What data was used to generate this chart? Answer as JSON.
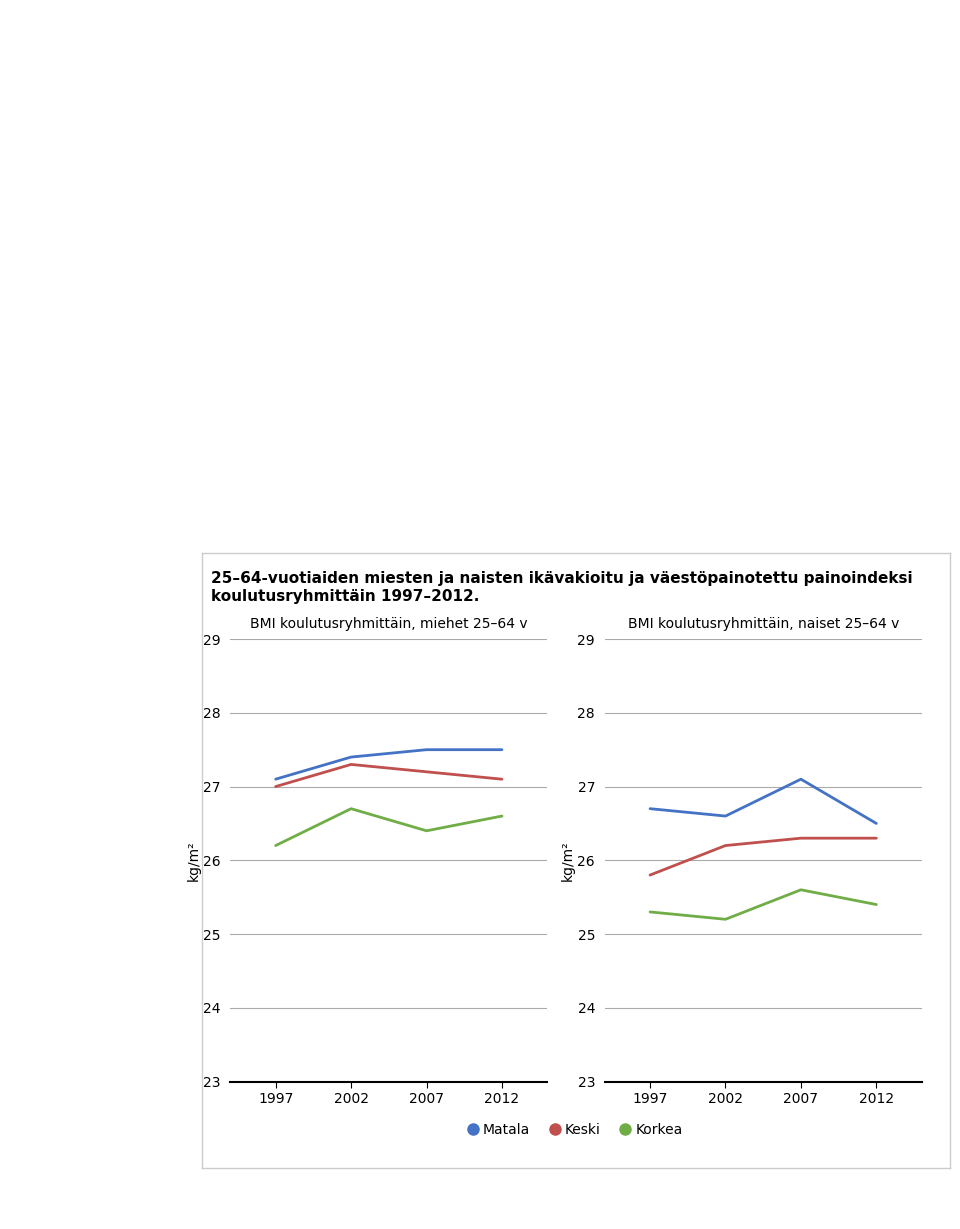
{
  "title": "25–64-vuotiaiden miesten ja naisten ikävakioitu ja väestöpainotettu painoindeksi\nkoulutusryhmittäin 1997–2012.",
  "subtitle_men": "BMI koulutusryhmittäin, miehet 25–64 v",
  "subtitle_women": "BMI koulutusryhmittäin, naiset 25–64 v",
  "ylabel": "kg/m²",
  "years": [
    1997,
    2002,
    2007,
    2012
  ],
  "men": {
    "Matala": [
      27.1,
      27.4,
      27.5,
      27.5
    ],
    "Keski": [
      27.0,
      27.3,
      27.2,
      27.1
    ],
    "Korkea": [
      26.2,
      26.7,
      26.4,
      26.6
    ]
  },
  "women": {
    "Matala": [
      26.7,
      26.6,
      27.1,
      26.5
    ],
    "Keski": [
      25.8,
      26.2,
      26.3,
      26.3
    ],
    "Korkea": [
      25.3,
      25.2,
      25.6,
      25.4
    ]
  },
  "colors": {
    "Matala": "#4472c4",
    "Keski": "#c0504d",
    "Korkea": "#70ad47"
  },
  "ylim": [
    23,
    29
  ],
  "yticks": [
    23,
    24,
    25,
    26,
    27,
    28,
    29
  ],
  "legend_labels": [
    "Matala",
    "Keski",
    "Korkea"
  ],
  "background_color": "#ffffff",
  "box_background": "#f5f5f5",
  "title_fontsize": 11,
  "subtitle_fontsize": 10,
  "tick_fontsize": 10,
  "ylabel_fontsize": 10,
  "legend_fontsize": 10
}
